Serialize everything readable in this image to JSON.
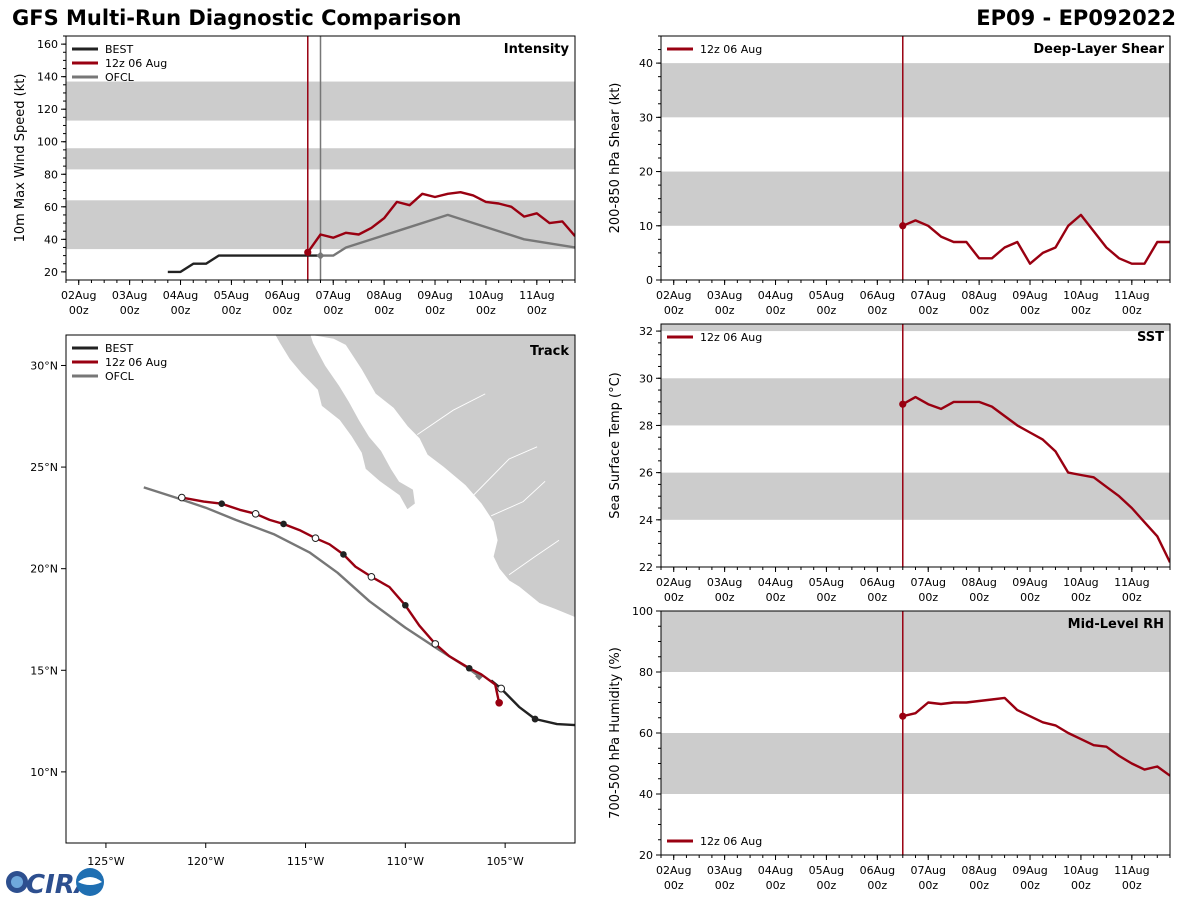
{
  "header": {
    "title": "GFS Multi-Run Diagnostic Comparison",
    "storm_id": "EP09 - EP092022"
  },
  "logo": {
    "text": "CIRA",
    "alt": "CIRA logo"
  },
  "colors": {
    "best": "#222222",
    "run": "#990011",
    "ofcl": "#777777",
    "band": "#cccccc"
  },
  "chart_data": [
    {
      "id": "intensity",
      "type": "line",
      "title": "Intensity",
      "ylabel": "10m Max Wind Speed (kt)",
      "ylim": [
        15,
        165
      ],
      "yticks": [
        20,
        40,
        60,
        80,
        100,
        120,
        140,
        160
      ],
      "xlim": [
        -0.25,
        9.75
      ],
      "xticks": [
        "02Aug\n00z",
        "03Aug\n00z",
        "04Aug\n00z",
        "05Aug\n00z",
        "06Aug\n00z",
        "07Aug\n00z",
        "08Aug\n00z",
        "09Aug\n00z",
        "10Aug\n00z",
        "11Aug\n00z"
      ],
      "bands": [
        [
          34,
          64
        ],
        [
          83,
          96
        ],
        [
          113,
          137
        ]
      ],
      "init_x": 4.5,
      "ofcl_x": 4.75,
      "legend": [
        "BEST",
        "12z 06 Aug",
        "OFCL"
      ],
      "series": [
        {
          "name": "BEST",
          "color": "#222222",
          "x": [
            1.75,
            2.0,
            2.25,
            2.5,
            2.75,
            3.0,
            3.25,
            3.5,
            3.75,
            4.0,
            4.25,
            4.5,
            4.75
          ],
          "y": [
            20,
            20,
            25,
            25,
            30,
            30,
            30,
            30,
            30,
            30,
            30,
            30,
            30
          ]
        },
        {
          "name": "12z 06 Aug",
          "color": "#990011",
          "x": [
            4.5,
            4.75,
            5.0,
            5.25,
            5.5,
            5.75,
            6.0,
            6.25,
            6.5,
            6.75,
            7.0,
            7.25,
            7.5,
            7.75,
            8.0,
            8.25,
            8.5,
            8.75,
            9.0,
            9.25,
            9.5,
            9.75
          ],
          "y": [
            32,
            43,
            41,
            44,
            43,
            47,
            53,
            63,
            61,
            68,
            66,
            68,
            69,
            67,
            63,
            62,
            60,
            54,
            56,
            50,
            51,
            42
          ]
        },
        {
          "name": "OFCL",
          "color": "#777777",
          "x": [
            4.75,
            5.0,
            5.25,
            6.25,
            7.25,
            8.75,
            9.75
          ],
          "y": [
            30,
            30,
            35,
            45,
            55,
            40,
            35
          ]
        }
      ]
    },
    {
      "id": "shear",
      "type": "line",
      "title": "Deep-Layer Shear",
      "ylabel": "200-850 hPa Shear (kt)",
      "ylim": [
        0,
        45
      ],
      "yticks": [
        0,
        10,
        20,
        30,
        40
      ],
      "xlim": [
        -0.25,
        9.75
      ],
      "xticks": [
        "02Aug\n00z",
        "03Aug\n00z",
        "04Aug\n00z",
        "05Aug\n00z",
        "06Aug\n00z",
        "07Aug\n00z",
        "08Aug\n00z",
        "09Aug\n00z",
        "10Aug\n00z",
        "11Aug\n00z"
      ],
      "bands": [
        [
          10,
          20
        ],
        [
          30,
          40
        ]
      ],
      "init_x": 4.5,
      "legend": [
        "12z 06 Aug"
      ],
      "series": [
        {
          "name": "12z 06 Aug",
          "color": "#990011",
          "x": [
            4.5,
            4.75,
            5.0,
            5.25,
            5.5,
            5.75,
            6.0,
            6.25,
            6.5,
            6.75,
            7.0,
            7.25,
            7.5,
            7.75,
            8.0,
            8.25,
            8.5,
            8.75,
            9.0,
            9.25,
            9.5,
            9.75
          ],
          "y": [
            10,
            11,
            10,
            8,
            7,
            7,
            4,
            4,
            6,
            7,
            3,
            5,
            6,
            10,
            12,
            9,
            6,
            4,
            3,
            3,
            7,
            7
          ]
        }
      ]
    },
    {
      "id": "sst",
      "type": "line",
      "title": "SST",
      "ylabel": "Sea Surface Temp (°C)",
      "ylim": [
        22,
        32.3
      ],
      "yticks": [
        22,
        24,
        26,
        28,
        30,
        32
      ],
      "xlim": [
        -0.25,
        9.75
      ],
      "xticks": [
        "02Aug\n00z",
        "03Aug\n00z",
        "04Aug\n00z",
        "05Aug\n00z",
        "06Aug\n00z",
        "07Aug\n00z",
        "08Aug\n00z",
        "09Aug\n00z",
        "10Aug\n00z",
        "11Aug\n00z"
      ],
      "bands": [
        [
          24,
          26
        ],
        [
          28,
          30
        ],
        [
          32,
          34
        ]
      ],
      "init_x": 4.5,
      "legend": [
        "12z 06 Aug"
      ],
      "series": [
        {
          "name": "12z 06 Aug",
          "color": "#990011",
          "x": [
            4.5,
            4.75,
            5.0,
            5.25,
            5.5,
            5.75,
            6.0,
            6.25,
            6.5,
            6.75,
            7.0,
            7.25,
            7.5,
            7.75,
            8.0,
            8.25,
            8.5,
            8.75,
            9.0,
            9.25,
            9.5,
            9.75
          ],
          "y": [
            28.9,
            29.2,
            28.9,
            28.7,
            29.0,
            29.0,
            29.0,
            28.8,
            28.4,
            28.0,
            27.7,
            27.4,
            26.9,
            26.0,
            25.9,
            25.8,
            25.4,
            25.0,
            24.5,
            23.9,
            23.3,
            22.2
          ]
        }
      ]
    },
    {
      "id": "rh",
      "type": "line",
      "title": "Mid-Level RH",
      "ylabel": "700-500 hPa Humidity (%)",
      "ylim": [
        20,
        100
      ],
      "yticks": [
        20,
        40,
        60,
        80,
        100
      ],
      "xlim": [
        -0.25,
        9.75
      ],
      "xticks": [
        "02Aug\n00z",
        "03Aug\n00z",
        "04Aug\n00z",
        "05Aug\n00z",
        "06Aug\n00z",
        "07Aug\n00z",
        "08Aug\n00z",
        "09Aug\n00z",
        "10Aug\n00z",
        "11Aug\n00z"
      ],
      "bands": [
        [
          40,
          60
        ],
        [
          80,
          100
        ]
      ],
      "init_x": 4.5,
      "legend": [
        "12z 06 Aug"
      ],
      "series": [
        {
          "name": "12z 06 Aug",
          "color": "#990011",
          "x": [
            4.5,
            4.75,
            5.0,
            5.25,
            5.5,
            5.75,
            6.0,
            6.25,
            6.5,
            6.75,
            7.0,
            7.25,
            7.5,
            7.75,
            8.0,
            8.25,
            8.5,
            8.75,
            9.0,
            9.25,
            9.5,
            9.75
          ],
          "y": [
            65.5,
            66.5,
            70.0,
            69.5,
            70.0,
            70.0,
            70.5,
            71.0,
            71.5,
            67.5,
            65.5,
            63.5,
            62.5,
            60.0,
            58.0,
            56.0,
            55.5,
            52.5,
            50.0,
            48.0,
            49.0,
            46.0
          ]
        }
      ]
    },
    {
      "id": "track",
      "type": "line",
      "title": "Track",
      "xlabel": "",
      "ylabel": "",
      "xlim": [
        -127,
        -101.5
      ],
      "ylim": [
        6.5,
        31.5
      ],
      "lon_ticks": [
        -125,
        -120,
        -115,
        -110,
        -105
      ],
      "lon_labels": [
        "125°W",
        "120°W",
        "115°W",
        "110°W",
        "105°W"
      ],
      "lat_ticks": [
        10,
        15,
        20,
        25,
        30
      ],
      "lat_labels": [
        "10°N",
        "15°N",
        "20°N",
        "25°N",
        "30°N"
      ],
      "legend": [
        "BEST",
        "12z 06 Aug",
        "OFCL"
      ],
      "series": [
        {
          "name": "BEST",
          "color": "#222222",
          "lon": [
            -101.5,
            -102.4,
            -103.5,
            -104.3,
            -105.2,
            -105.7
          ],
          "lat": [
            12.3,
            12.35,
            12.6,
            13.2,
            14.1,
            14.5
          ],
          "markers": [
            -103.5,
            12.6,
            -105.2,
            14.1
          ]
        },
        {
          "name": "12z 06 Aug",
          "color": "#990011",
          "lon": [
            -105.3,
            -105.5,
            -106.2,
            -106.8,
            -107.8,
            -108.5,
            -109.3,
            -110.0,
            -110.8,
            -111.7,
            -112.5,
            -113.1,
            -113.8,
            -114.5,
            -115.3,
            -116.1,
            -116.8,
            -117.5,
            -118.3,
            -119.2,
            -120.1,
            -121.2
          ],
          "lat": [
            13.4,
            14.3,
            14.8,
            15.1,
            15.7,
            16.3,
            17.2,
            18.2,
            19.1,
            19.6,
            20.1,
            20.7,
            21.2,
            21.5,
            21.9,
            22.2,
            22.4,
            22.7,
            22.9,
            23.2,
            23.3,
            23.5
          ],
          "filled": [
            [
              -106.8,
              15.1
            ],
            [
              -110.0,
              18.2
            ],
            [
              -113.1,
              20.7
            ],
            [
              -116.1,
              22.2
            ],
            [
              -119.2,
              23.2
            ]
          ],
          "open": [
            [
              -108.5,
              16.3
            ],
            [
              -111.7,
              19.6
            ],
            [
              -114.5,
              21.5
            ],
            [
              -117.5,
              22.7
            ],
            [
              -121.2,
              23.5
            ]
          ]
        },
        {
          "name": "OFCL",
          "color": "#777777",
          "lon": [
            -106.3,
            -107.0,
            -108.3,
            -110.0,
            -111.8,
            -113.4,
            -114.8,
            -116.6,
            -118.5,
            -120.0,
            -121.5,
            -123.1
          ],
          "lat": [
            14.7,
            15.2,
            16.0,
            17.1,
            18.4,
            19.8,
            20.8,
            21.7,
            22.4,
            23.0,
            23.5,
            24.0
          ]
        }
      ]
    }
  ]
}
